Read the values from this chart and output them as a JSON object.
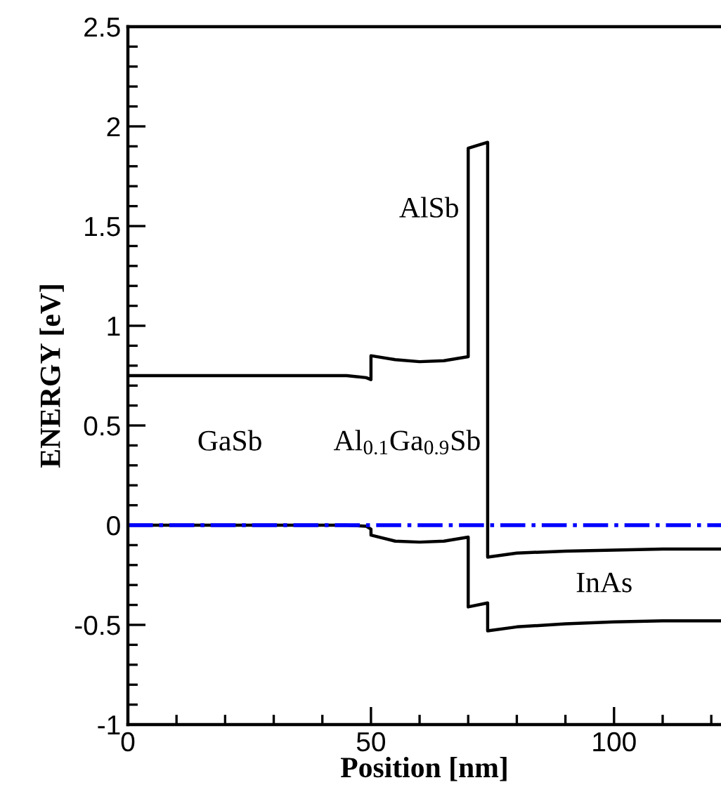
{
  "chart_data": {
    "type": "line",
    "xlabel": "Position [nm]",
    "ylabel": "ENERGY [eV]",
    "xlim": [
      0,
      122
    ],
    "ylim": [
      -1,
      2.5
    ],
    "xticks": [
      0,
      50,
      100,
      {
        "value": 10,
        "label": null
      },
      {
        "value": 20,
        "label": null
      },
      {
        "value": 30,
        "label": null
      },
      {
        "value": 40,
        "label": null
      },
      {
        "value": 60,
        "label": null
      },
      {
        "value": 70,
        "label": null
      },
      {
        "value": 80,
        "label": null
      },
      {
        "value": 90,
        "label": null
      },
      {
        "value": 110,
        "label": null
      },
      {
        "value": 120,
        "label": null
      }
    ],
    "yticks": [
      -1,
      -0.5,
      0,
      0.5,
      1,
      1.5,
      2,
      2.5,
      {
        "value": -0.9,
        "label": null
      },
      {
        "value": -0.8,
        "label": null
      },
      {
        "value": -0.7,
        "label": null
      },
      {
        "value": -0.6,
        "label": null
      },
      {
        "value": -0.4,
        "label": null
      },
      {
        "value": -0.3,
        "label": null
      },
      {
        "value": -0.2,
        "label": null
      },
      {
        "value": -0.1,
        "label": null
      },
      {
        "value": 0.1,
        "label": null
      },
      {
        "value": 0.2,
        "label": null
      },
      {
        "value": 0.3,
        "label": null
      },
      {
        "value": 0.4,
        "label": null
      },
      {
        "value": 0.6,
        "label": null
      },
      {
        "value": 0.7,
        "label": null
      },
      {
        "value": 0.8,
        "label": null
      },
      {
        "value": 0.9,
        "label": null
      },
      {
        "value": 1.1,
        "label": null
      },
      {
        "value": 1.2,
        "label": null
      },
      {
        "value": 1.3,
        "label": null
      },
      {
        "value": 1.4,
        "label": null
      },
      {
        "value": 1.6,
        "label": null
      },
      {
        "value": 1.7,
        "label": null
      },
      {
        "value": 1.8,
        "label": null
      },
      {
        "value": 1.9,
        "label": null
      },
      {
        "value": 2.1,
        "label": null
      },
      {
        "value": 2.2,
        "label": null
      },
      {
        "value": 2.3,
        "label": null
      },
      {
        "value": 2.4,
        "label": null
      }
    ],
    "series": [
      {
        "color": "#000000",
        "x": [
          0,
          45,
          49,
          50,
          50,
          55,
          60,
          65,
          70,
          70,
          74,
          74,
          80,
          90,
          100,
          110,
          122
        ],
        "values": [
          0.75,
          0.75,
          0.74,
          0.73,
          0.85,
          0.83,
          0.82,
          0.825,
          0.845,
          1.89,
          1.92,
          -0.16,
          -0.14,
          -0.13,
          -0.125,
          -0.12,
          -0.12
        ]
      },
      {
        "color": "#000000",
        "x": [
          0,
          45,
          49,
          50,
          50,
          55,
          60,
          65,
          70,
          70,
          74,
          74,
          80,
          90,
          100,
          110,
          122
        ],
        "values": [
          0,
          0,
          -0.005,
          -0.02,
          -0.05,
          -0.08,
          -0.085,
          -0.08,
          -0.06,
          -0.41,
          -0.39,
          -0.53,
          -0.51,
          -0.495,
          -0.485,
          -0.48,
          -0.48
        ]
      }
    ],
    "ref_lines": [
      {
        "axis": "y",
        "value": 0,
        "color": "#0000ff",
        "line_style": "dashdot"
      }
    ],
    "annotations": [
      "GaSb",
      "Al$_{0.1}$Ga$_{0.9}$Sb",
      "AlSb",
      "InAs"
    ],
    "grid": false,
    "legend": false,
    "marker": "none",
    "line_style": "solid"
  }
}
